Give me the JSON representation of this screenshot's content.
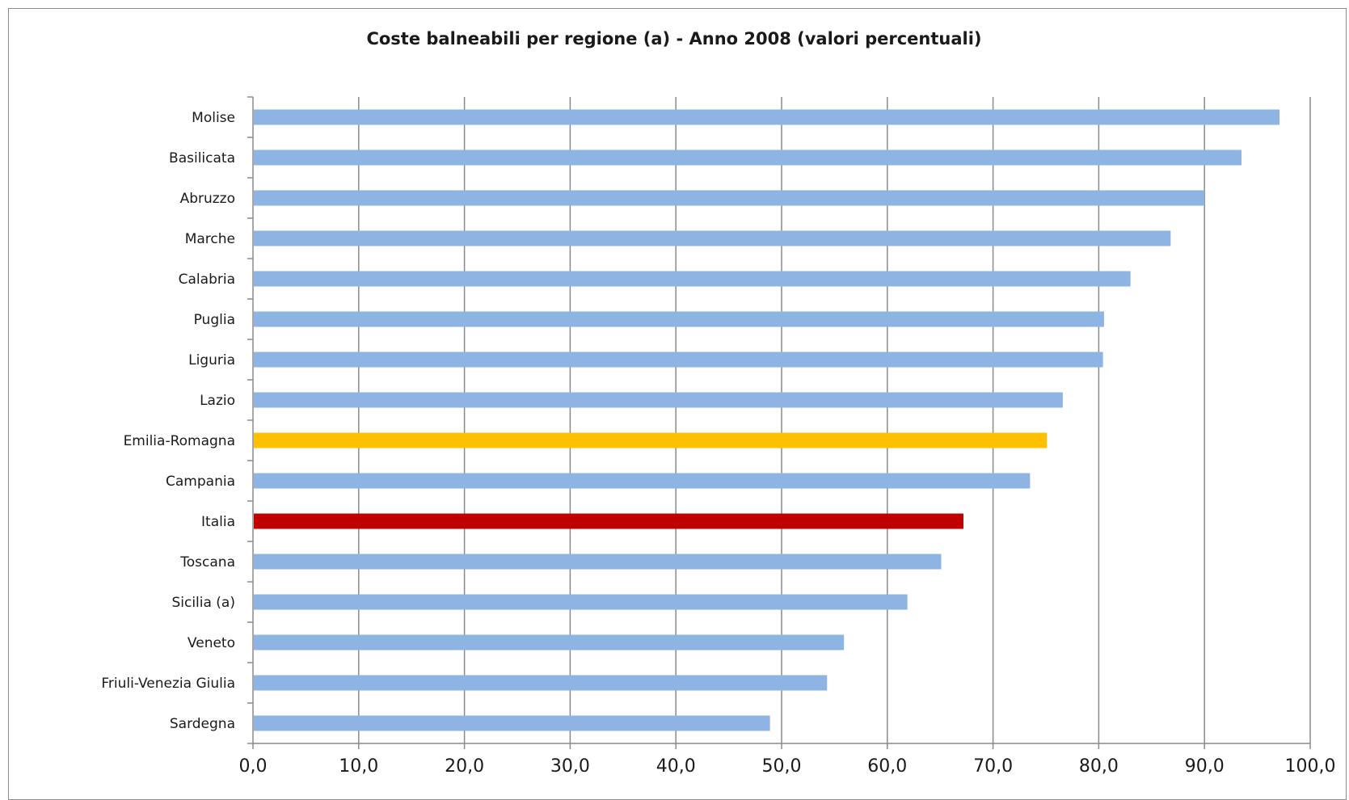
{
  "chart_data": {
    "type": "bar",
    "orientation": "horizontal",
    "title": "Coste balneabili per regione (a) - Anno 2008 (valori percentuali)",
    "xlabel": "",
    "ylabel": "",
    "xlim": [
      0,
      100
    ],
    "grid": true,
    "legend": "none",
    "categories": [
      "Molise",
      "Basilicata",
      "Abruzzo",
      "Marche",
      "Calabria",
      "Puglia",
      "Liguria",
      "Lazio",
      "Emilia-Romagna",
      "Campania",
      "Italia",
      "Toscana",
      "Sicilia (a)",
      "Veneto",
      "Friuli-Venezia Giulia",
      "Sardegna"
    ],
    "values": [
      97.1,
      93.5,
      90.0,
      86.8,
      83.0,
      80.5,
      80.4,
      76.6,
      75.1,
      73.5,
      67.2,
      65.1,
      61.9,
      55.9,
      54.3,
      48.9
    ],
    "bar_colors": [
      "#8EB4E3",
      "#8EB4E3",
      "#8EB4E3",
      "#8EB4E3",
      "#8EB4E3",
      "#8EB4E3",
      "#8EB4E3",
      "#8EB4E3",
      "#FFC000",
      "#8EB4E3",
      "#C00000",
      "#8EB4E3",
      "#8EB4E3",
      "#8EB4E3",
      "#8EB4E3",
      "#8EB4E3"
    ],
    "tick_values": [
      0,
      10,
      20,
      30,
      40,
      50,
      60,
      70,
      80,
      90,
      100
    ],
    "tick_labels": [
      "0,0",
      "10,0",
      "20,0",
      "30,0",
      "40,0",
      "50,0",
      "60,0",
      "70,0",
      "80,0",
      "90,0",
      "100,0"
    ]
  }
}
